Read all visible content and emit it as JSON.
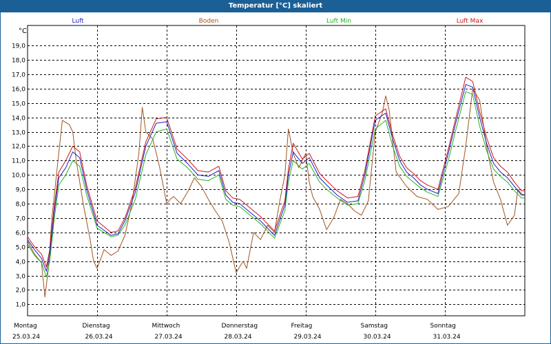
{
  "title": "Temperatur [°C] skaliert",
  "colors": {
    "luft": "#1c1cc8",
    "boden": "#a0521e",
    "luft_min": "#22b022",
    "luft_max": "#c81414",
    "grid": "#000000",
    "titlebar": "#1a5f96"
  },
  "chart_data": {
    "type": "line",
    "title": "Temperatur [°C] skaliert",
    "ylabel": "°C",
    "ylim": [
      0.2,
      20.4
    ],
    "yticks": [
      1.0,
      2.0,
      3.0,
      4.0,
      5.0,
      6.0,
      7.0,
      8.0,
      9.0,
      10.0,
      11.0,
      12.0,
      13.0,
      14.0,
      15.0,
      16.0,
      17.0,
      18.0,
      19.0
    ],
    "ytick_labels": [
      "1,0",
      "2,0",
      "3,0",
      "4,0",
      "5,0",
      "6,0",
      "7,0",
      "8,0",
      "9,0",
      "10,0",
      "11,0",
      "12,0",
      "13,0",
      "14,0",
      "15,0",
      "16,0",
      "17,0",
      "18,0",
      "19,0"
    ],
    "xlim": [
      0,
      7.15
    ],
    "x_days": [
      {
        "day": "Montag",
        "date": "25.03.24"
      },
      {
        "day": "Dienstag",
        "date": "26.03.24"
      },
      {
        "day": "Mittwoch",
        "date": "27.03.24"
      },
      {
        "day": "Donnerstag",
        "date": "28.03.24"
      },
      {
        "day": "Freitag",
        "date": "29.03.24"
      },
      {
        "day": "Samstag",
        "date": "30.03.24"
      },
      {
        "day": "Sonntag",
        "date": "31.03.24"
      }
    ],
    "series": [
      {
        "name": "Luft",
        "key": "luft",
        "x": [
          0,
          0.1,
          0.2,
          0.27,
          0.32,
          0.38,
          0.45,
          0.55,
          0.65,
          0.75,
          0.85,
          1.0,
          1.2,
          1.3,
          1.4,
          1.55,
          1.7,
          1.85,
          2.0,
          2.15,
          2.3,
          2.45,
          2.6,
          2.75,
          2.85,
          2.95,
          3.05,
          3.2,
          3.35,
          3.45,
          3.55,
          3.7,
          3.75,
          3.82,
          3.95,
          4.05,
          4.2,
          4.3,
          4.45,
          4.6,
          4.75,
          4.85,
          5.0,
          5.15,
          5.25,
          5.35,
          5.45,
          5.55,
          5.65,
          5.75,
          5.9,
          6.05,
          6.15,
          6.3,
          6.4,
          6.5,
          6.6,
          6.7,
          6.8,
          6.9,
          7.0,
          7.1,
          7.15
        ],
        "y": [
          5.5,
          4.8,
          4.2,
          3.3,
          4.5,
          7.3,
          9.8,
          10.5,
          11.6,
          11.2,
          9.0,
          6.5,
          5.8,
          5.9,
          6.8,
          8.8,
          12.0,
          13.6,
          13.7,
          11.5,
          10.8,
          10.0,
          9.9,
          10.3,
          8.6,
          8.1,
          8.0,
          7.4,
          6.8,
          6.3,
          5.8,
          7.9,
          10.0,
          11.6,
          10.8,
          11.2,
          9.8,
          9.3,
          8.6,
          8.1,
          8.2,
          10.0,
          13.8,
          14.3,
          12.5,
          11.0,
          10.2,
          9.8,
          9.3,
          9.0,
          8.7,
          11.5,
          13.5,
          16.3,
          16.1,
          14.0,
          12.2,
          10.8,
          10.2,
          9.8,
          9.2,
          8.6,
          8.6
        ]
      },
      {
        "name": "Boden",
        "key": "boden",
        "x": [
          0,
          0.1,
          0.2,
          0.25,
          0.3,
          0.35,
          0.42,
          0.5,
          0.6,
          0.65,
          0.7,
          0.8,
          0.9,
          0.95,
          1.0,
          1.1,
          1.2,
          1.3,
          1.4,
          1.5,
          1.6,
          1.65,
          1.7,
          1.8,
          1.9,
          2.0,
          2.05,
          2.1,
          2.2,
          2.3,
          2.4,
          2.5,
          2.6,
          2.7,
          2.8,
          2.9,
          3.0,
          3.1,
          3.15,
          3.25,
          3.35,
          3.45,
          3.55,
          3.62,
          3.7,
          3.75,
          3.82,
          3.9,
          4.0,
          4.05,
          4.1,
          4.2,
          4.3,
          4.4,
          4.5,
          4.6,
          4.7,
          4.8,
          4.9,
          5.0,
          5.1,
          5.15,
          5.2,
          5.3,
          5.45,
          5.6,
          5.75,
          5.9,
          6.05,
          6.2,
          6.3,
          6.4,
          6.5,
          6.6,
          6.7,
          6.8,
          6.9,
          7.0,
          7.05,
          7.1,
          7.15
        ],
        "y": [
          5.4,
          4.5,
          3.9,
          1.5,
          3.5,
          7.0,
          10.2,
          13.8,
          13.5,
          13.0,
          11.0,
          8.0,
          5.5,
          4.0,
          3.5,
          4.8,
          4.4,
          4.7,
          5.8,
          8.0,
          11.5,
          14.7,
          13.0,
          12.5,
          10.5,
          8.0,
          8.3,
          8.5,
          8.0,
          8.8,
          9.8,
          9.2,
          8.3,
          7.5,
          6.8,
          5.3,
          3.2,
          4.0,
          3.5,
          6.0,
          5.5,
          6.5,
          6.0,
          8.0,
          10.0,
          13.2,
          11.5,
          10.5,
          11.5,
          9.5,
          8.5,
          7.6,
          6.2,
          7.0,
          8.3,
          8.0,
          7.5,
          7.2,
          8.2,
          13.0,
          14.3,
          15.5,
          14.5,
          10.2,
          9.2,
          8.5,
          8.3,
          7.6,
          7.8,
          8.7,
          12.0,
          16.0,
          15.2,
          12.0,
          9.5,
          8.3,
          6.5,
          7.2,
          9.0,
          8.7,
          8.6
        ]
      },
      {
        "name": "Luft Min",
        "key": "luft_min",
        "x": [
          0,
          0.1,
          0.2,
          0.27,
          0.32,
          0.38,
          0.45,
          0.55,
          0.65,
          0.75,
          0.85,
          1.0,
          1.2,
          1.3,
          1.4,
          1.55,
          1.7,
          1.85,
          2.0,
          2.15,
          2.3,
          2.45,
          2.6,
          2.75,
          2.85,
          2.95,
          3.05,
          3.2,
          3.35,
          3.45,
          3.55,
          3.7,
          3.75,
          3.82,
          3.95,
          4.05,
          4.2,
          4.3,
          4.45,
          4.6,
          4.75,
          4.85,
          5.0,
          5.15,
          5.25,
          5.35,
          5.45,
          5.55,
          5.65,
          5.75,
          5.9,
          6.05,
          6.15,
          6.3,
          6.4,
          6.5,
          6.6,
          6.7,
          6.8,
          6.9,
          7.0,
          7.1,
          7.15
        ],
        "y": [
          5.2,
          4.4,
          3.9,
          2.9,
          4.0,
          6.8,
          9.3,
          10.0,
          11.0,
          10.6,
          8.6,
          6.3,
          5.7,
          5.8,
          6.5,
          8.3,
          11.4,
          13.0,
          13.2,
          11.1,
          10.5,
          9.7,
          9.6,
          10.0,
          8.3,
          7.9,
          7.8,
          7.2,
          6.6,
          6.1,
          5.6,
          7.5,
          9.5,
          11.0,
          10.4,
          10.8,
          9.5,
          9.0,
          8.4,
          7.9,
          8.0,
          9.6,
          13.2,
          13.8,
          12.0,
          10.6,
          9.9,
          9.5,
          9.1,
          8.8,
          8.5,
          11.0,
          13.0,
          15.8,
          15.6,
          13.4,
          11.7,
          10.4,
          9.9,
          9.5,
          8.9,
          8.4,
          8.4
        ]
      },
      {
        "name": "Luft Max",
        "key": "luft_max",
        "x": [
          0,
          0.1,
          0.2,
          0.27,
          0.32,
          0.38,
          0.45,
          0.55,
          0.65,
          0.75,
          0.85,
          1.0,
          1.2,
          1.3,
          1.4,
          1.55,
          1.7,
          1.85,
          2.0,
          2.15,
          2.3,
          2.45,
          2.6,
          2.75,
          2.85,
          2.95,
          3.05,
          3.2,
          3.35,
          3.45,
          3.55,
          3.7,
          3.75,
          3.82,
          3.95,
          4.05,
          4.2,
          4.3,
          4.45,
          4.6,
          4.75,
          4.85,
          5.0,
          5.15,
          5.25,
          5.35,
          5.45,
          5.55,
          5.65,
          5.75,
          5.9,
          6.05,
          6.15,
          6.3,
          6.4,
          6.5,
          6.6,
          6.7,
          6.8,
          6.9,
          7.0,
          7.1,
          7.15
        ],
        "y": [
          5.7,
          5.0,
          4.5,
          3.6,
          4.8,
          7.7,
          10.2,
          11.0,
          12.0,
          11.6,
          9.3,
          6.8,
          6.0,
          6.1,
          7.0,
          9.1,
          12.3,
          13.9,
          14.0,
          11.8,
          11.1,
          10.3,
          10.2,
          10.6,
          8.9,
          8.4,
          8.3,
          7.7,
          7.1,
          6.6,
          6.1,
          8.2,
          10.4,
          12.2,
          11.1,
          11.5,
          10.1,
          9.6,
          8.9,
          8.4,
          8.5,
          10.3,
          14.1,
          14.6,
          12.8,
          11.3,
          10.5,
          10.1,
          9.6,
          9.3,
          9.0,
          11.8,
          13.8,
          16.8,
          16.5,
          14.4,
          12.6,
          11.2,
          10.6,
          10.2,
          9.5,
          8.9,
          8.9
        ]
      }
    ]
  }
}
